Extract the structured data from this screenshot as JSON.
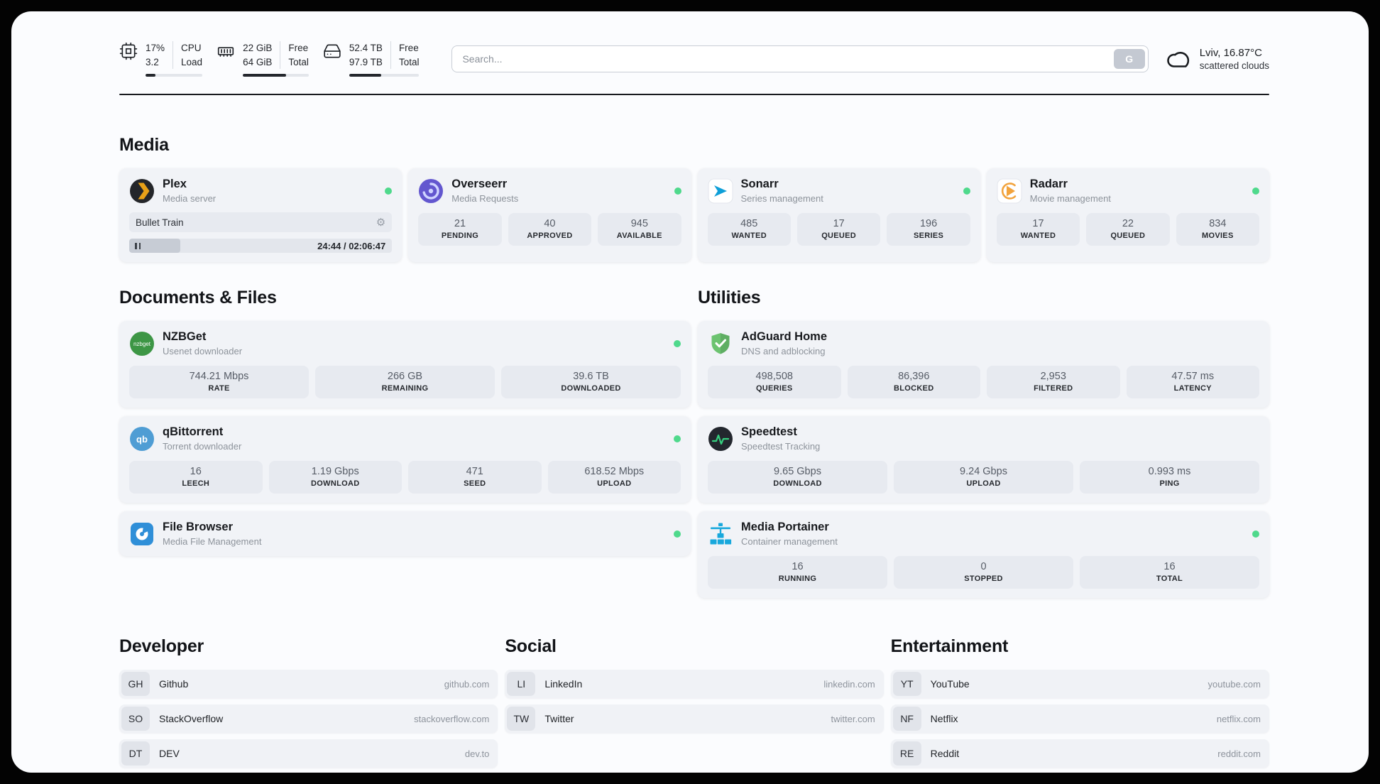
{
  "header": {
    "cpu": {
      "usage": "17%",
      "load": "3.2",
      "label_top": "CPU",
      "label_bottom": "Load",
      "progress_percent": 17
    },
    "memory": {
      "free": "22 GiB",
      "total": "64 GiB",
      "label_top": "Free",
      "label_bottom": "Total",
      "progress_percent": 66
    },
    "disk": {
      "free": "52.4 TB",
      "total": "97.9 TB",
      "label_top": "Free",
      "label_bottom": "Total",
      "progress_percent": 46
    },
    "search": {
      "placeholder": "Search...",
      "provider": "G"
    },
    "weather": {
      "location": "Lviv, 16.87°C",
      "condition": "scattered clouds"
    }
  },
  "sections": {
    "media": "Media",
    "documents": "Documents & Files",
    "utilities": "Utilities",
    "developer": "Developer",
    "social": "Social",
    "entertainment": "Entertainment"
  },
  "media": {
    "plex": {
      "name": "Plex",
      "subtitle": "Media server",
      "now_playing": "Bullet Train",
      "time": "24:44 / 02:06:47",
      "progress_percent": 19.5
    },
    "overseerr": {
      "name": "Overseerr",
      "subtitle": "Media Requests",
      "stats": [
        {
          "value": "21",
          "label": "PENDING"
        },
        {
          "value": "40",
          "label": "APPROVED"
        },
        {
          "value": "945",
          "label": "AVAILABLE"
        }
      ]
    },
    "sonarr": {
      "name": "Sonarr",
      "subtitle": "Series management",
      "stats": [
        {
          "value": "485",
          "label": "WANTED"
        },
        {
          "value": "17",
          "label": "QUEUED"
        },
        {
          "value": "196",
          "label": "SERIES"
        }
      ]
    },
    "radarr": {
      "name": "Radarr",
      "subtitle": "Movie management",
      "stats": [
        {
          "value": "17",
          "label": "WANTED"
        },
        {
          "value": "22",
          "label": "QUEUED"
        },
        {
          "value": "834",
          "label": "MOVIES"
        }
      ]
    }
  },
  "documents": {
    "nzbget": {
      "name": "NZBGet",
      "subtitle": "Usenet downloader",
      "stats": [
        {
          "value": "744.21 Mbps",
          "label": "RATE"
        },
        {
          "value": "266 GB",
          "label": "REMAINING"
        },
        {
          "value": "39.6 TB",
          "label": "DOWNLOADED"
        }
      ]
    },
    "qbittorrent": {
      "name": "qBittorrent",
      "subtitle": "Torrent downloader",
      "stats": [
        {
          "value": "16",
          "label": "LEECH"
        },
        {
          "value": "1.19 Gbps",
          "label": "DOWNLOAD"
        },
        {
          "value": "471",
          "label": "SEED"
        },
        {
          "value": "618.52 Mbps",
          "label": "UPLOAD"
        }
      ]
    },
    "filebrowser": {
      "name": "File Browser",
      "subtitle": "Media File Management"
    }
  },
  "utilities": {
    "adguard": {
      "name": "AdGuard Home",
      "subtitle": "DNS and adblocking",
      "stats": [
        {
          "value": "498,508",
          "label": "QUERIES"
        },
        {
          "value": "86,396",
          "label": "BLOCKED"
        },
        {
          "value": "2,953",
          "label": "FILTERED"
        },
        {
          "value": "47.57 ms",
          "label": "LATENCY"
        }
      ]
    },
    "speedtest": {
      "name": "Speedtest",
      "subtitle": "Speedtest Tracking",
      "stats": [
        {
          "value": "9.65 Gbps",
          "label": "DOWNLOAD"
        },
        {
          "value": "9.24 Gbps",
          "label": "UPLOAD"
        },
        {
          "value": "0.993 ms",
          "label": "PING"
        }
      ]
    },
    "portainer": {
      "name": "Media Portainer",
      "subtitle": "Container management",
      "stats": [
        {
          "value": "16",
          "label": "RUNNING"
        },
        {
          "value": "0",
          "label": "STOPPED"
        },
        {
          "value": "16",
          "label": "TOTAL"
        }
      ]
    }
  },
  "bookmarks": {
    "developer": [
      {
        "abbr": "GH",
        "name": "Github",
        "url": "github.com"
      },
      {
        "abbr": "SO",
        "name": "StackOverflow",
        "url": "stackoverflow.com"
      },
      {
        "abbr": "DT",
        "name": "DEV",
        "url": "dev.to"
      }
    ],
    "social": [
      {
        "abbr": "LI",
        "name": "LinkedIn",
        "url": "linkedin.com"
      },
      {
        "abbr": "TW",
        "name": "Twitter",
        "url": "twitter.com"
      }
    ],
    "entertainment": [
      {
        "abbr": "YT",
        "name": "YouTube",
        "url": "youtube.com"
      },
      {
        "abbr": "NF",
        "name": "Netflix",
        "url": "netflix.com"
      },
      {
        "abbr": "RE",
        "name": "Reddit",
        "url": "reddit.com"
      }
    ]
  },
  "colors": {
    "status_green": "#4fd98c",
    "divider_dark": "#181a1e"
  }
}
